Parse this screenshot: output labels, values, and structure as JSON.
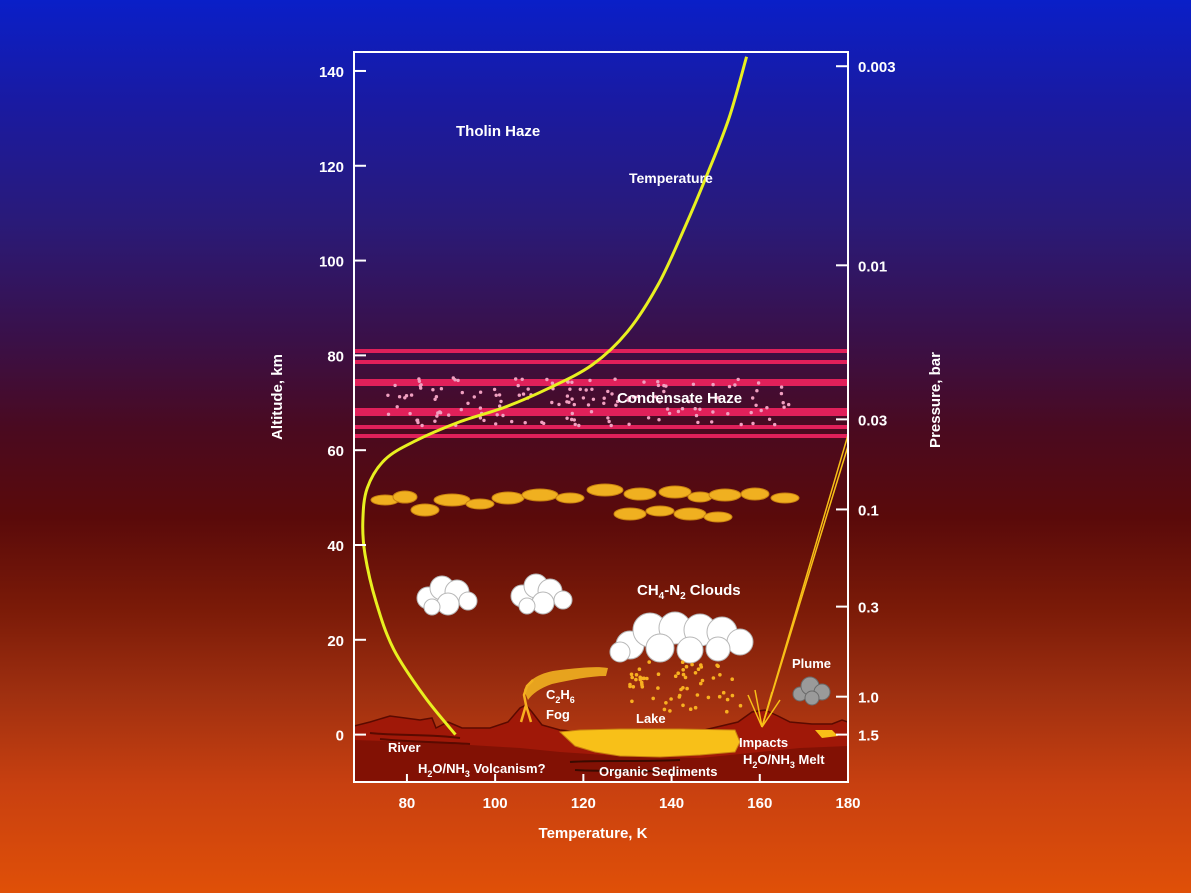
{
  "chart_data": {
    "type": "line",
    "title": "",
    "xlabel": "Temperature, K",
    "ylabel": "Altitude, km",
    "y2label": "Pressure, bar",
    "xlim": [
      68,
      180
    ],
    "ylim": [
      -10,
      144
    ],
    "x_ticks": [
      "80",
      "100",
      "120",
      "140",
      "160",
      "180"
    ],
    "x_tick_values": [
      80,
      100,
      120,
      140,
      160,
      180
    ],
    "y_ticks": [
      "0",
      "20",
      "40",
      "60",
      "80",
      "100",
      "120",
      "140"
    ],
    "y_tick_values": [
      0,
      20,
      40,
      60,
      80,
      100,
      120,
      140
    ],
    "pressure_ticks": [
      {
        "label": "0.003",
        "altitude": 141
      },
      {
        "label": "0.01",
        "altitude": 99
      },
      {
        "label": "0.03",
        "altitude": 66.5
      },
      {
        "label": "0.1",
        "altitude": 47.5
      },
      {
        "label": "0.3",
        "altitude": 27
      },
      {
        "label": "1.0",
        "altitude": 8
      },
      {
        "label": "1.5",
        "altitude": 0
      }
    ],
    "series": [
      {
        "name": "Temperature",
        "x": [
          91,
          84,
          77,
          73,
          70.5,
          70,
          71,
          75,
          82,
          92,
          102,
          112,
          122,
          130,
          137,
          143,
          148,
          153,
          157
        ],
        "y": [
          0,
          8,
          18,
          28,
          38,
          45,
          52,
          58,
          62,
          66,
          69,
          73,
          78,
          85,
          95,
          107,
          118,
          130,
          143
        ]
      }
    ]
  },
  "annotations": {
    "tholin_haze": "Tholin Haze",
    "temperature_curve": "Temperature",
    "condensate_haze": "Condensate Haze",
    "clouds_main": "CH",
    "clouds_sub1": "4",
    "clouds_mid": "-N",
    "clouds_sub2": "2",
    "clouds_tail": " Clouds",
    "fog_main": "C",
    "fog_sub1": "2",
    "fog_mid": "H",
    "fog_sub2": "6",
    "fog_word": "Fog",
    "lake": "Lake",
    "plume": "Plume",
    "river": "River",
    "volc_main": "H",
    "volc_sub1": "2",
    "volc_mid": "O/NH",
    "volc_sub2": "3",
    "volc_tail": " Volcanism?",
    "organic_sediments": "Organic Sediments",
    "impacts": "Impacts",
    "melt_main": "H",
    "melt_sub1": "2",
    "melt_mid": "O/NH",
    "melt_sub2": "3",
    "melt_tail": " Melt"
  },
  "colors": {
    "frame": "#ffffff",
    "temperature_curve": "#e8f020",
    "haze_band": "#e0205a",
    "haze_dots": "#f0a0c0",
    "methane_cloud": "#f0b020",
    "white_cloud": "#ffffff",
    "surface": "#a01808",
    "lake": "#f8c018",
    "rain": "#f8b020"
  }
}
